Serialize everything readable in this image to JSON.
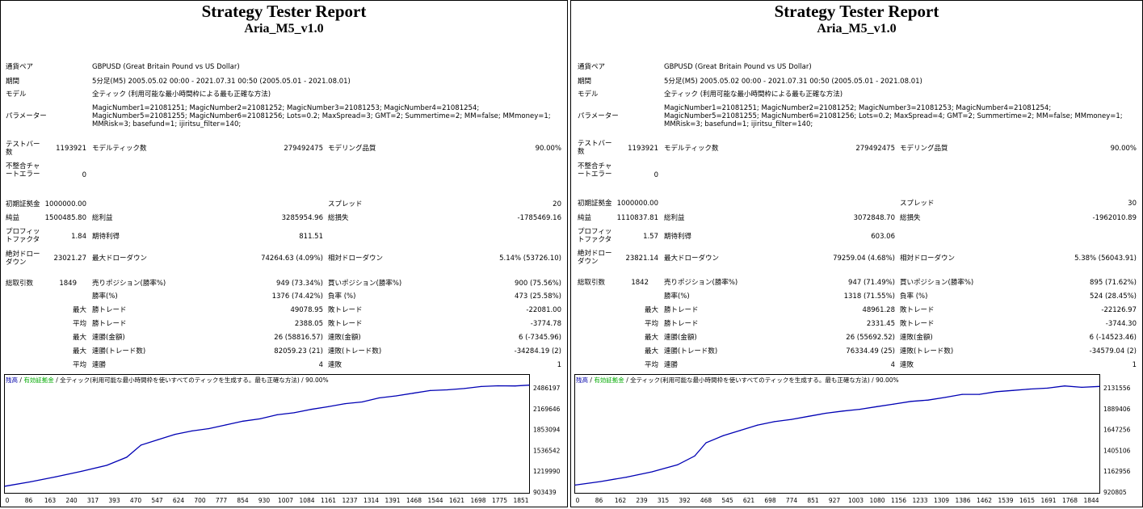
{
  "reports": [
    {
      "title": "Strategy Tester Report",
      "ea_name": "Aria_M5_v1.0",
      "settings": {
        "symbol_label": "通貨ペア",
        "symbol": "GBPUSD (Great Britain Pound vs US Dollar)",
        "period_label": "期間",
        "period": "5分足(M5) 2005.05.02 00:00 - 2021.07.31 00:50 (2005.05.01 - 2021.08.01)",
        "model_label": "モデル",
        "model": "全ティック (利用可能な最小時間枠による最も正確な方法)",
        "params_label": "パラメーター",
        "params": "MagicNumber1=21081251; MagicNumber2=21081252; MagicNumber3=21081253; MagicNumber4=21081254; MagicNumber5=21081255; MagicNumber6=21081256; Lots=0.2; MaxSpread=3; GMT=2; Summertime=2; MM=false; MMmoney=1; MMRisk=3; basefund=1; ijiritsu_filter=140;"
      },
      "stats": {
        "bars_label": "テストバー数",
        "bars": "1193921",
        "ticks_label": "モデルティック数",
        "ticks": "279492475",
        "quality_label": "モデリング品質",
        "quality": "90.00%",
        "mismatch_label": "不整合チャートエラー",
        "mismatch": "0",
        "deposit_label": "初期証拠金",
        "deposit": "1000000.00",
        "spread_label": "スプレッド",
        "spread": "20",
        "net_profit_label": "純益",
        "net_profit": "1500485.80",
        "gross_profit_label": "総利益",
        "gross_profit": "3285954.96",
        "gross_loss_label": "総損失",
        "gross_loss": "-1785469.16",
        "pf_label": "プロフィットファクタ",
        "pf": "1.84",
        "expected_label": "期待利得",
        "expected": "811.51",
        "abs_dd_label": "絶対ドローダウン",
        "abs_dd": "23021.27",
        "max_dd_label": "最大ドローダウン",
        "max_dd": "74264.63 (4.09%)",
        "rel_dd_label": "相対ドローダウン",
        "rel_dd": "5.14% (53726.10)",
        "trades_label": "総取引数",
        "trades": "1849",
        "short_label": "売りポジション(勝率%)",
        "short": "949 (73.34%)",
        "long_label": "買いポジション(勝率%)",
        "long": "900 (75.56%)",
        "win_label": "勝率(%)",
        "win": "1376 (74.42%)",
        "loss_label": "負率 (%)",
        "loss": "473 (25.58%)",
        "max_label": "最大",
        "avg_label": "平均",
        "largest_win_label": "勝トレード",
        "largest_win": "49078.95",
        "largest_loss_label": "敗トレード",
        "largest_loss": "-22081.00",
        "avg_win_label": "勝トレード",
        "avg_win": "2388.05",
        "avg_loss_label": "敗トレード",
        "avg_loss": "-3774.78",
        "cons_wins_label": "連勝(金額)",
        "cons_wins": "26 (58816.57)",
        "cons_losses_label": "連敗(金額)",
        "cons_losses": "6 (-7345.96)",
        "cons_profit_label": "連勝(トレード数)",
        "cons_profit": "82059.23 (21)",
        "cons_loss_label": "連敗(トレード数)",
        "cons_loss": "-34284.19 (2)",
        "avg_cons_wins_label": "連勝",
        "avg_cons_wins": "4",
        "avg_cons_losses_label": "連敗",
        "avg_cons_losses": "1"
      },
      "chart_data": {
        "type": "line",
        "legend": [
          "残高",
          "有効証拠金",
          "全ティック(利用可能な最小時間枠を使いすべてのティックを生成する。最も正確な方法)",
          "90.00%"
        ],
        "x_ticks": [
          "0",
          "86",
          "163",
          "240",
          "317",
          "393",
          "470",
          "547",
          "624",
          "700",
          "777",
          "854",
          "930",
          "1007",
          "1084",
          "1161",
          "1237",
          "1314",
          "1391",
          "1468",
          "1544",
          "1621",
          "1698",
          "1775",
          "1851"
        ],
        "y_ticks": [
          "2486197",
          "2169646",
          "1853094",
          "1536542",
          "1219990",
          "903439"
        ],
        "ylim": [
          903439,
          2486197
        ],
        "xlim": [
          0,
          1849
        ],
        "series": [
          {
            "name": "残高",
            "color": "#0000b4",
            "x": [
              0,
              90,
              180,
              270,
              360,
              430,
              480,
              540,
              600,
              660,
              720,
              780,
              840,
              900,
              960,
              1020,
              1080,
              1140,
              1200,
              1260,
              1320,
              1380,
              1440,
              1500,
              1560,
              1620,
              1680,
              1740,
              1800,
              1849
            ],
            "y": [
              990000,
              1055000,
              1130000,
              1210000,
              1300000,
              1420000,
              1600000,
              1680000,
              1760000,
              1810000,
              1845000,
              1900000,
              1955000,
              1990000,
              2050000,
              2080000,
              2130000,
              2170000,
              2215000,
              2240000,
              2300000,
              2330000,
              2370000,
              2410000,
              2420000,
              2440000,
              2470000,
              2480000,
              2478000,
              2490000
            ]
          }
        ]
      }
    },
    {
      "title": "Strategy Tester Report",
      "ea_name": "Aria_M5_v1.0",
      "settings": {
        "symbol_label": "通貨ペア",
        "symbol": "GBPUSD (Great Britain Pound vs US Dollar)",
        "period_label": "期間",
        "period": "5分足(M5) 2005.05.02 00:00 - 2021.07.31 00:50 (2005.05.01 - 2021.08.01)",
        "model_label": "モデル",
        "model": "全ティック (利用可能な最小時間枠による最も正確な方法)",
        "params_label": "パラメーター",
        "params": "MagicNumber1=21081251; MagicNumber2=21081252; MagicNumber3=21081253; MagicNumber4=21081254; MagicNumber5=21081255; MagicNumber6=21081256; Lots=0.2; MaxSpread=4; GMT=2; Summertime=2; MM=false; MMmoney=1; MMRisk=3; basefund=1; ijiritsu_filter=140;"
      },
      "stats": {
        "bars_label": "テストバー数",
        "bars": "1193921",
        "ticks_label": "モデルティック数",
        "ticks": "279492475",
        "quality_label": "モデリング品質",
        "quality": "90.00%",
        "mismatch_label": "不整合チャートエラー",
        "mismatch": "0",
        "deposit_label": "初期証拠金",
        "deposit": "1000000.00",
        "spread_label": "スプレッド",
        "spread": "30",
        "net_profit_label": "純益",
        "net_profit": "1110837.81",
        "gross_profit_label": "総利益",
        "gross_profit": "3072848.70",
        "gross_loss_label": "総損失",
        "gross_loss": "-1962010.89",
        "pf_label": "プロフィットファクタ",
        "pf": "1.57",
        "expected_label": "期待利得",
        "expected": "603.06",
        "abs_dd_label": "絶対ドローダウン",
        "abs_dd": "23821.14",
        "max_dd_label": "最大ドローダウン",
        "max_dd": "79259.04 (4.68%)",
        "rel_dd_label": "相対ドローダウン",
        "rel_dd": "5.38% (56043.91)",
        "trades_label": "総取引数",
        "trades": "1842",
        "short_label": "売りポジション(勝率%)",
        "short": "947 (71.49%)",
        "long_label": "買いポジション(勝率%)",
        "long": "895 (71.62%)",
        "win_label": "勝率(%)",
        "win": "1318 (71.55%)",
        "loss_label": "負率 (%)",
        "loss": "524 (28.45%)",
        "max_label": "最大",
        "avg_label": "平均",
        "largest_win_label": "勝トレード",
        "largest_win": "48961.28",
        "largest_loss_label": "敗トレード",
        "largest_loss": "-22126.97",
        "avg_win_label": "勝トレード",
        "avg_win": "2331.45",
        "avg_loss_label": "敗トレード",
        "avg_loss": "-3744.30",
        "cons_wins_label": "連勝(金額)",
        "cons_wins": "26 (55692.52)",
        "cons_losses_label": "連敗(金額)",
        "cons_losses": "6 (-14523.46)",
        "cons_profit_label": "連勝(トレード数)",
        "cons_profit": "76334.49 (25)",
        "cons_loss_label": "連敗(トレード数)",
        "cons_loss": "-34579.04 (2)",
        "avg_cons_wins_label": "連勝",
        "avg_cons_wins": "4",
        "avg_cons_losses_label": "連敗",
        "avg_cons_losses": "1"
      },
      "chart_data": {
        "type": "line",
        "legend": [
          "残高",
          "有効証拠金",
          "全ティック(利用可能な最小時間枠を使いすべてのティックを生成する。最も正確な方法)",
          "90.00%"
        ],
        "x_ticks": [
          "0",
          "86",
          "162",
          "239",
          "315",
          "392",
          "468",
          "545",
          "621",
          "698",
          "774",
          "851",
          "927",
          "1003",
          "1080",
          "1156",
          "1233",
          "1309",
          "1386",
          "1462",
          "1539",
          "1615",
          "1691",
          "1768",
          "1844"
        ],
        "y_ticks": [
          "2131556",
          "1889406",
          "1647256",
          "1405106",
          "1162956",
          "920805"
        ],
        "ylim": [
          920805,
          2131556
        ],
        "xlim": [
          0,
          1842
        ],
        "series": [
          {
            "name": "残高",
            "color": "#0000b4",
            "x": [
              0,
              90,
              180,
              270,
              360,
              420,
              460,
              520,
              580,
              640,
              700,
              760,
              820,
              880,
              940,
              1000,
              1060,
              1120,
              1180,
              1240,
              1300,
              1360,
              1420,
              1480,
              1540,
              1600,
              1660,
              1720,
              1780,
              1842
            ],
            "y": [
              1000000,
              1040000,
              1090000,
              1150000,
              1230000,
              1330000,
              1480000,
              1560000,
              1620000,
              1680000,
              1720000,
              1745000,
              1780000,
              1815000,
              1840000,
              1860000,
              1890000,
              1920000,
              1950000,
              1965000,
              1995000,
              2030000,
              2030000,
              2060000,
              2075000,
              2090000,
              2100000,
              2125000,
              2110000,
              2120000
            ]
          }
        ]
      }
    }
  ]
}
